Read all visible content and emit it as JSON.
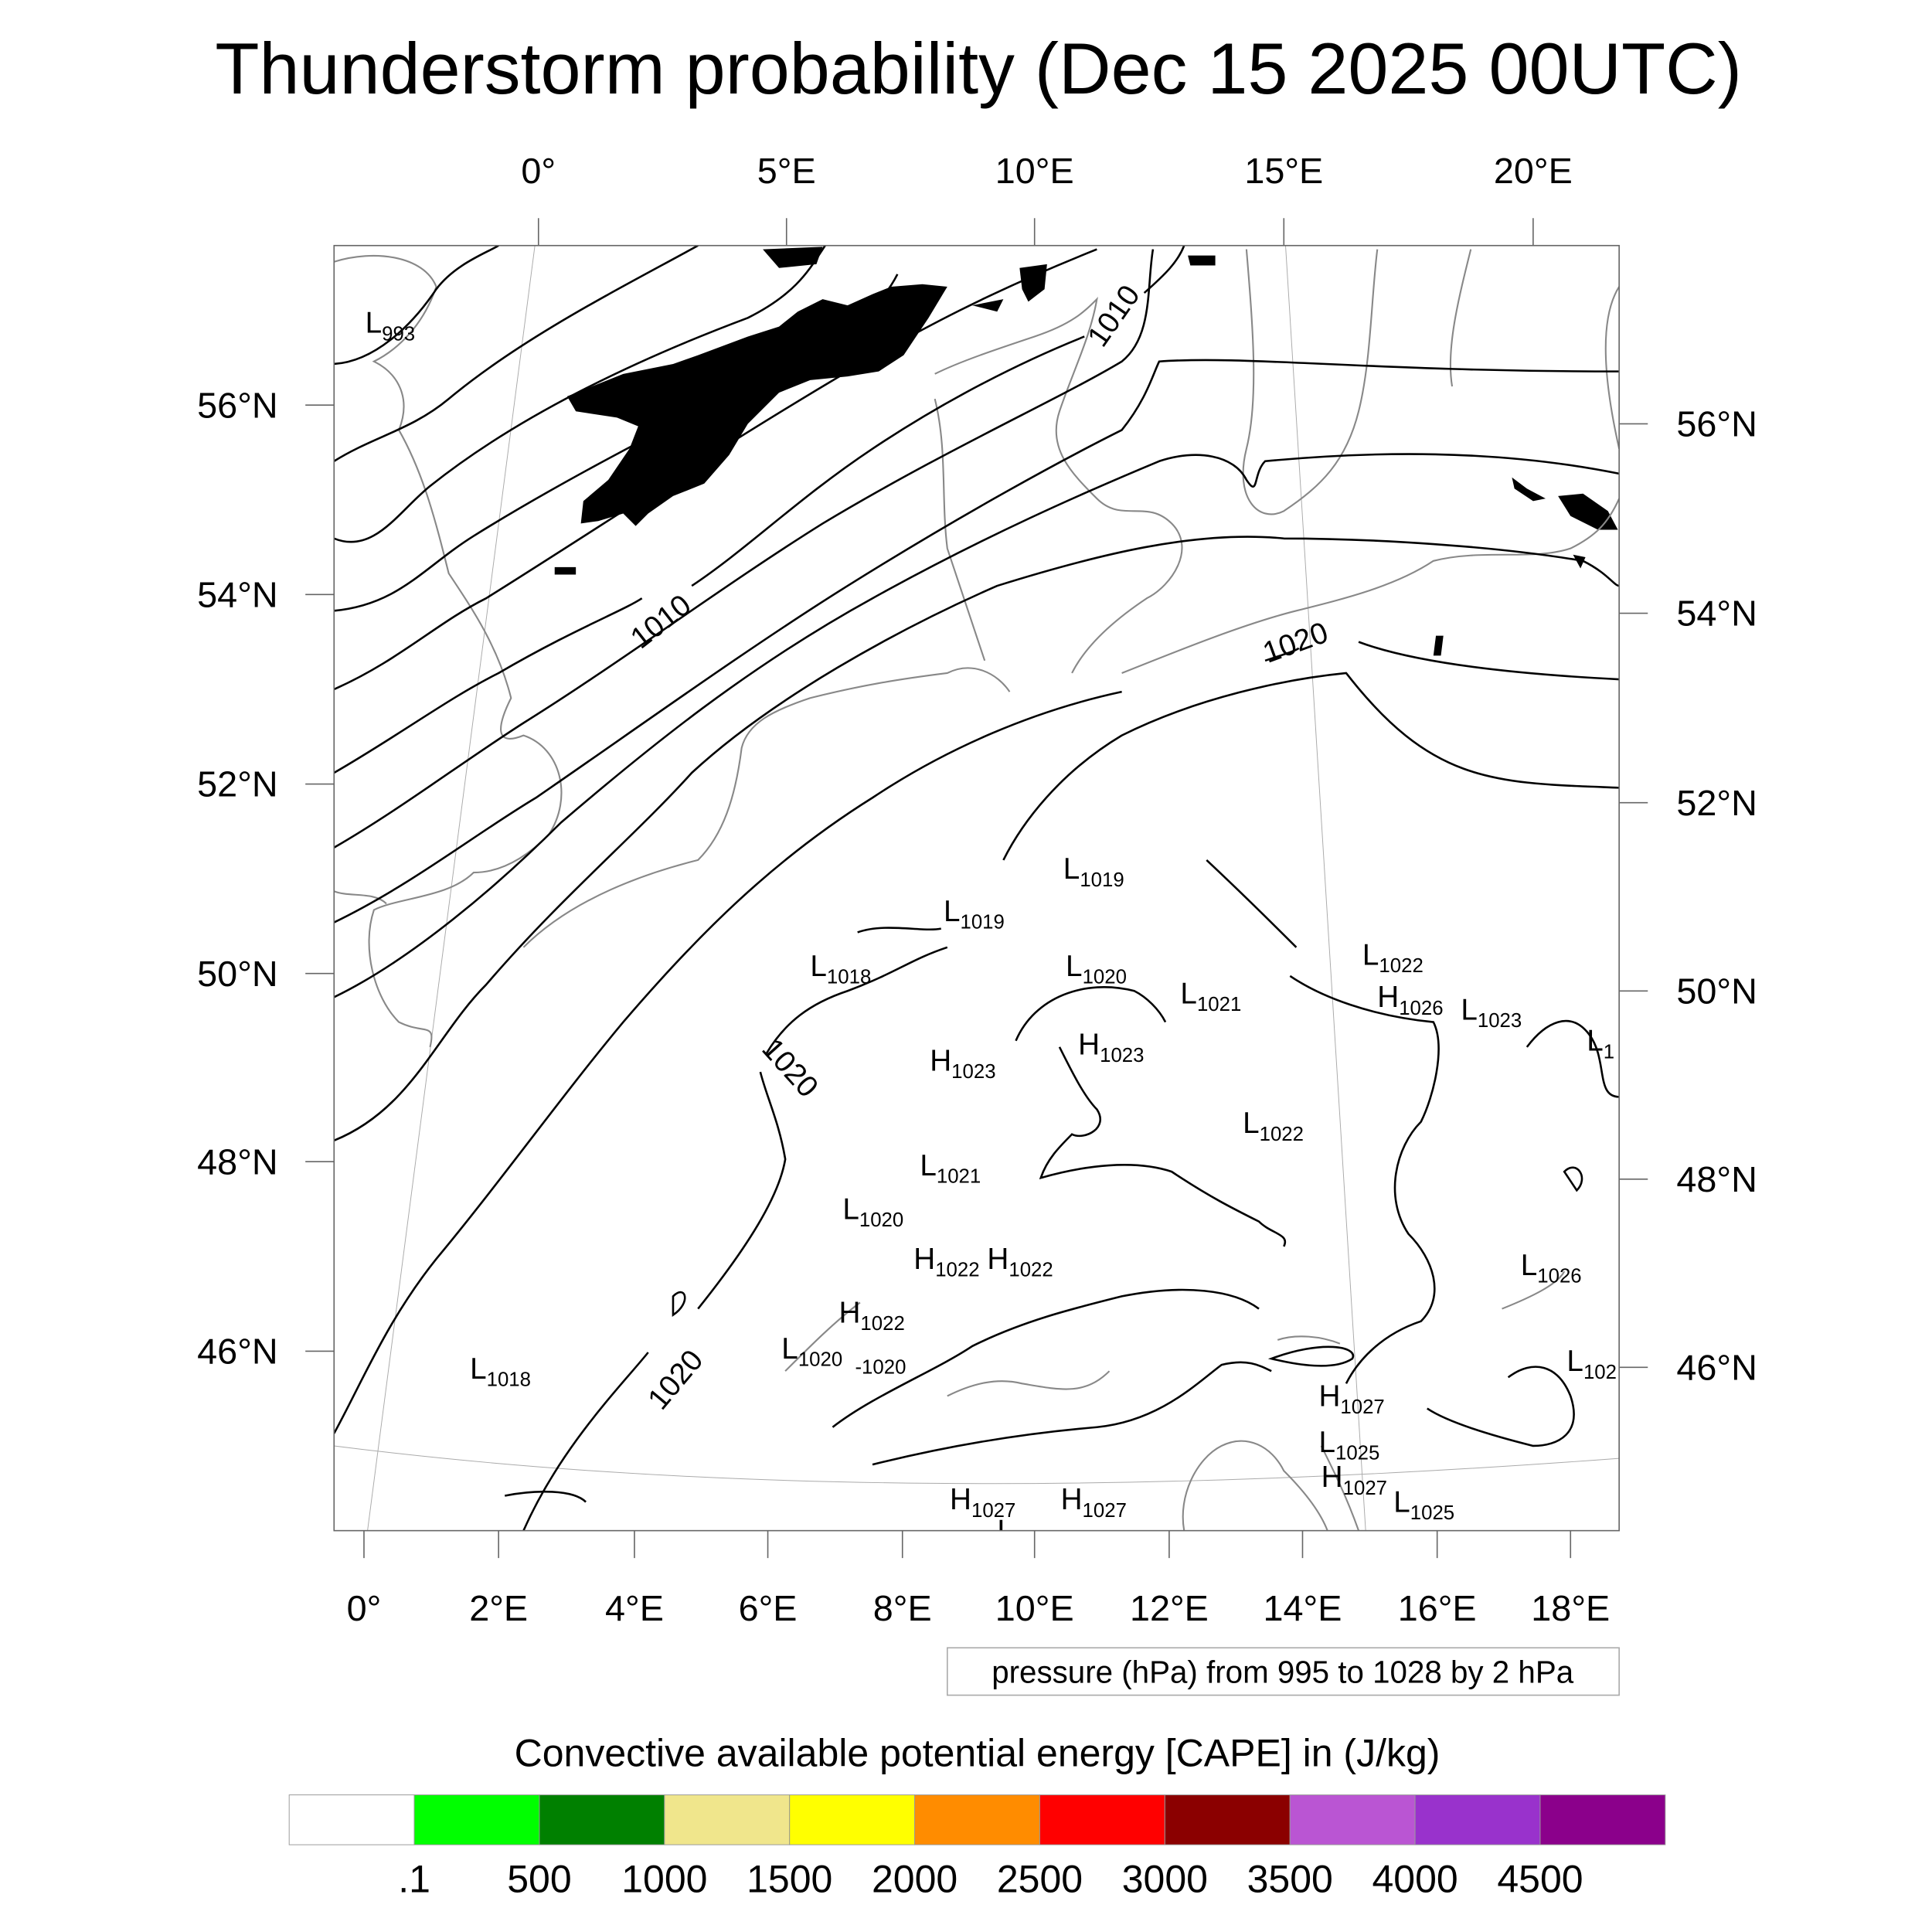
{
  "chart_data": {
    "type": "contour-map",
    "title": "Thunderstorm probability (Dec 15 2025 00UTC)",
    "top_lon_labels": [
      "0°",
      "5°E",
      "10°E",
      "15°E",
      "20°E"
    ],
    "bottom_lon_labels": [
      "0°",
      "2°E",
      "4°E",
      "6°E",
      "8°E",
      "10°E",
      "12°E",
      "14°E",
      "16°E",
      "18°E"
    ],
    "left_lat_labels": [
      "56°N",
      "54°N",
      "52°N",
      "50°N",
      "48°N",
      "46°N"
    ],
    "right_lat_labels": [
      "56°N",
      "54°N",
      "52°N",
      "50°N",
      "48°N",
      "46°N"
    ],
    "contour_info": "pressure (hPa) from 995 to 1028 by 2 hPa",
    "contour_range": [
      995,
      1028
    ],
    "contour_interval": 2,
    "contour_line_labels": [
      "1010",
      "1010",
      "1020",
      "1020",
      "1020"
    ],
    "pressure_centers": [
      {
        "type": "L",
        "value": "993"
      },
      {
        "type": "L",
        "value": "1019"
      },
      {
        "type": "L",
        "value": "1019"
      },
      {
        "type": "L",
        "value": "1018"
      },
      {
        "type": "L",
        "value": "1020"
      },
      {
        "type": "L",
        "value": "1021"
      },
      {
        "type": "L",
        "value": "1022"
      },
      {
        "type": "H",
        "value": "1026"
      },
      {
        "type": "L",
        "value": "1023"
      },
      {
        "type": "L",
        "value": "1"
      },
      {
        "type": "H",
        "value": "1023"
      },
      {
        "type": "H",
        "value": "1023"
      },
      {
        "type": "L",
        "value": "1022"
      },
      {
        "type": "L",
        "value": "1021"
      },
      {
        "type": "L",
        "value": "1020"
      },
      {
        "type": "H",
        "value": "1022"
      },
      {
        "type": "H",
        "value": "1022"
      },
      {
        "type": "H",
        "value": "1022"
      },
      {
        "type": "L",
        "value": "1020"
      },
      {
        "type": "-",
        "value": "1020"
      },
      {
        "type": "L",
        "value": "1018"
      },
      {
        "type": "H",
        "value": "1027"
      },
      {
        "type": "L",
        "value": "1025"
      },
      {
        "type": "H",
        "value": "1027"
      },
      {
        "type": "H",
        "value": "1027"
      },
      {
        "type": "H",
        "value": "1027"
      },
      {
        "type": "L",
        "value": "1025"
      },
      {
        "type": "L",
        "value": "1026"
      },
      {
        "type": "L",
        "value": "1026"
      },
      {
        "type": "L",
        "value": "102"
      }
    ],
    "colorbar": {
      "title": "Convective available potential energy [CAPE] in (J/kg)",
      "labels": [
        ".1",
        "500",
        "1000",
        "1500",
        "2000",
        "2500",
        "3000",
        "3500",
        "4000",
        "4500"
      ],
      "colors": [
        "#ffffff",
        "#00ff00",
        "#008000",
        "#f0e68c",
        "#ffff00",
        "#ff8c00",
        "#ff0000",
        "#8b0000",
        "#ba55d3",
        "#9932cc",
        "#8b008b"
      ]
    },
    "cape_fill_color": "#00ff00"
  }
}
